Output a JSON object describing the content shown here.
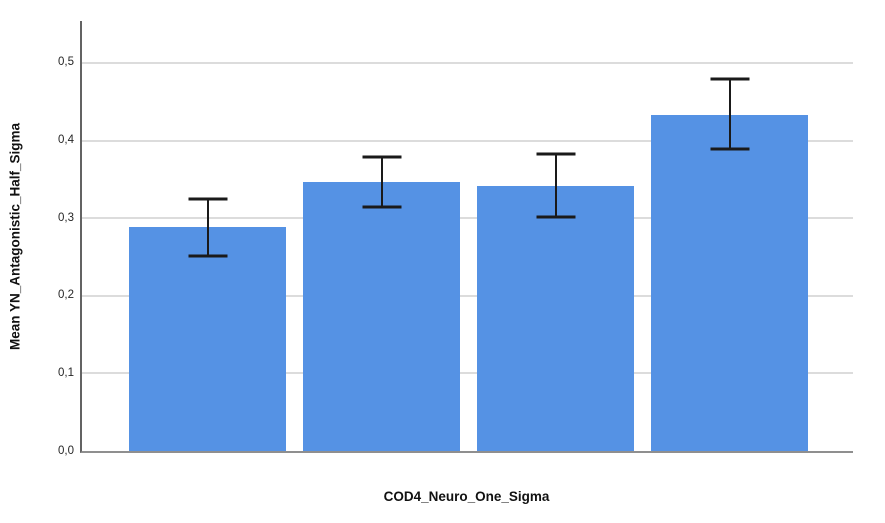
{
  "chart_data": {
    "type": "bar",
    "title": "",
    "xlabel": "COD4_Neuro_One_Sigma",
    "ylabel": "Mean YN_Antagonistic_Half_Sigma",
    "categories": [
      "",
      "",
      "",
      ""
    ],
    "series": [
      {
        "name": "Mean YN_Antagonistic_Half_Sigma",
        "values": [
          0.289,
          0.347,
          0.341,
          0.433
        ]
      }
    ],
    "error_bars": {
      "low": [
        0.251,
        0.314,
        0.302,
        0.389
      ],
      "high": [
        0.325,
        0.379,
        0.383,
        0.479
      ]
    },
    "ylim": [
      0,
      0.554
    ],
    "yticks": {
      "values": [
        0,
        0.1,
        0.2,
        0.3,
        0.4,
        0.5
      ],
      "labels": [
        "0,0",
        "0,1",
        "0,2",
        "0,3",
        "0,4",
        "0,5"
      ]
    },
    "grid": true,
    "legend": false,
    "decimal_separator": ",",
    "colors": {
      "bar_fill": "#5592e4",
      "gridline": "#dcdcdc",
      "axis": "#6b6b6b",
      "error_bar": "#1a1a1a",
      "tick_text": "#262626",
      "title_text": "#111111"
    }
  }
}
